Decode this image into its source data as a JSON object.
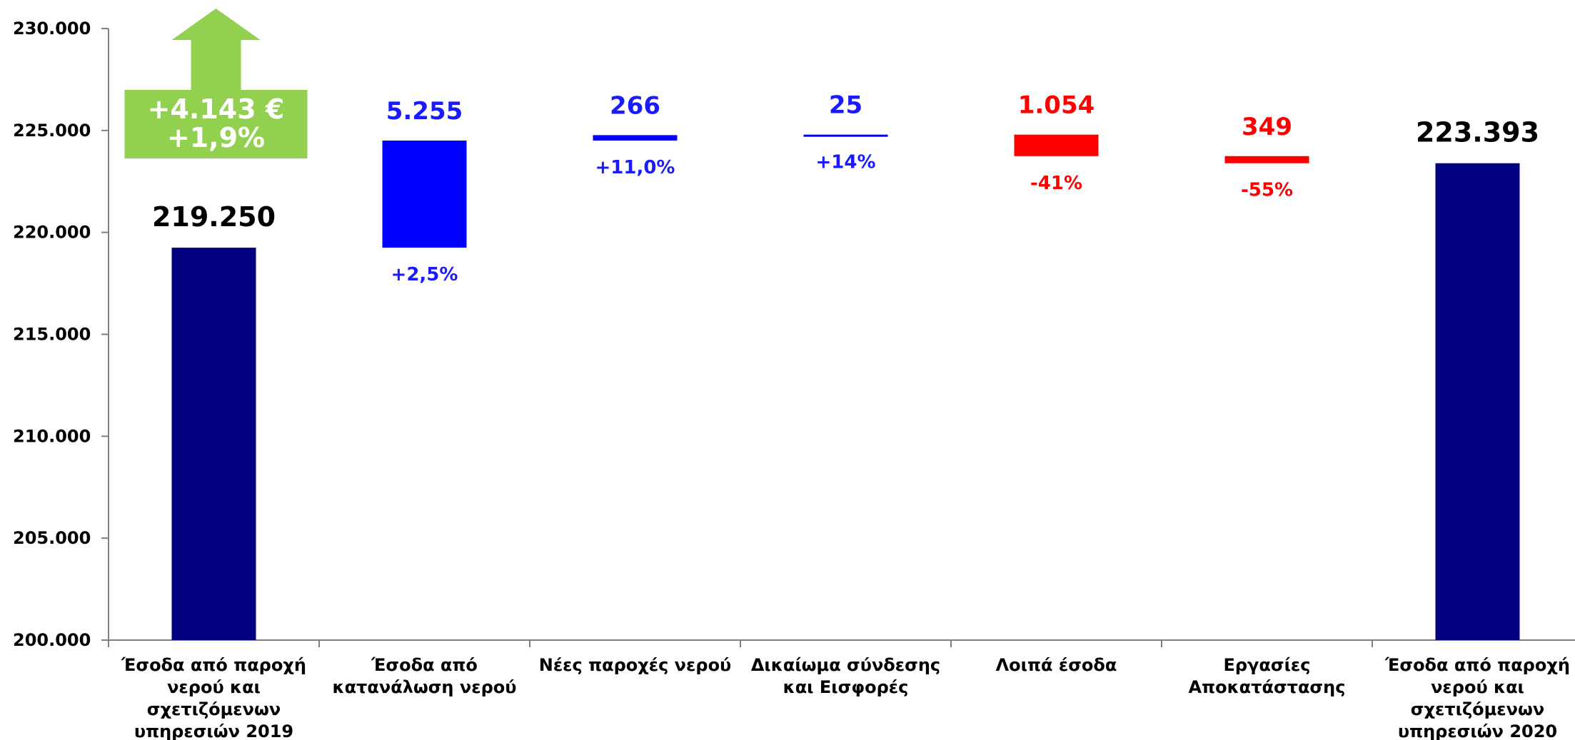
{
  "chart_data": {
    "type": "bar",
    "subtype": "waterfall",
    "ylim": [
      200000,
      230000
    ],
    "yticks": [
      200000,
      205000,
      210000,
      215000,
      220000,
      225000,
      230000
    ],
    "ytick_labels": [
      "200.000",
      "205.000",
      "210.000",
      "215.000",
      "220.000",
      "225.000",
      "230.000"
    ],
    "grid": false,
    "categories": [
      [
        "Έσοδα από παροχή",
        "νερού και",
        "σχετιζόμενων",
        "υπηρεσιών 2019"
      ],
      [
        "Έσοδα από",
        "κατανάλωση νερού"
      ],
      [
        "Νέες παροχές νερού"
      ],
      [
        "Δικαίωμα σύνδεσης",
        "και Εισφορές"
      ],
      [
        "Λοιπά έσοδα"
      ],
      [
        "Εργασίες",
        "Αποκατάστασης"
      ],
      [
        "Έσοδα από παροχή",
        "νερού και",
        "σχετιζόμενων",
        "υπηρεσιών 2020"
      ]
    ],
    "bars": [
      {
        "kind": "total",
        "base": 200000,
        "top": 219250,
        "value_label": "219.250",
        "pct_label": "",
        "color": "#000080",
        "label_color": "#000000"
      },
      {
        "kind": "increase",
        "base": 219250,
        "top": 224505,
        "value_label": "5.255",
        "pct_label": "+2,5%",
        "color": "#0000ff",
        "label_color": "#1a1aff"
      },
      {
        "kind": "increase",
        "base": 224505,
        "top": 224771,
        "value_label": "266",
        "pct_label": "+11,0%",
        "color": "#0000ff",
        "label_color": "#1a1aff"
      },
      {
        "kind": "increase",
        "base": 224771,
        "top": 224796,
        "value_label": "25",
        "pct_label": "+14%",
        "color": "#0000ff",
        "label_color": "#1a1aff"
      },
      {
        "kind": "decrease",
        "base": 224796,
        "top": 223742,
        "value_label": "1.054",
        "pct_label": "-41%",
        "color": "#ff0000",
        "label_color": "#ff0000"
      },
      {
        "kind": "decrease",
        "base": 223742,
        "top": 223393,
        "value_label": "349",
        "pct_label": "-55%",
        "color": "#ff0000",
        "label_color": "#ff0000"
      },
      {
        "kind": "total",
        "base": 200000,
        "top": 223393,
        "value_label": "223.393",
        "pct_label": "",
        "color": "#000080",
        "label_color": "#000000"
      }
    ],
    "annotation": {
      "lines": [
        "+4.143 €",
        "+1,9%"
      ],
      "color": "#92d050",
      "shape": "up-arrow"
    }
  }
}
